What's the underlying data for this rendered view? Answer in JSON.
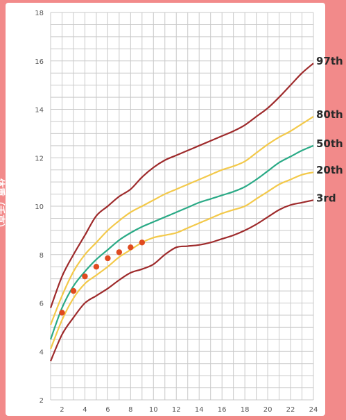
{
  "chart_data": {
    "type": "line",
    "title": "",
    "xlabel": "",
    "ylabel": "体重（千克）",
    "xlim": [
      1,
      24
    ],
    "ylim": [
      2,
      18
    ],
    "x_ticks": [
      2,
      4,
      6,
      8,
      10,
      12,
      14,
      16,
      18,
      20,
      22,
      24
    ],
    "y_ticks": [
      2,
      4,
      6,
      8,
      10,
      12,
      14,
      16,
      18
    ],
    "grid": true,
    "series": [
      {
        "name": "97th",
        "color": "#9e2a2b",
        "x": [
          1,
          2,
          3,
          4,
          5,
          6,
          7,
          8,
          9,
          10,
          11,
          12,
          13,
          14,
          15,
          16,
          17,
          18,
          19,
          20,
          21,
          22,
          23,
          24
        ],
        "values": [
          5.8,
          7.1,
          8.0,
          8.8,
          9.6,
          10.0,
          10.4,
          10.7,
          11.2,
          11.6,
          11.9,
          12.1,
          12.3,
          12.5,
          12.7,
          12.9,
          13.1,
          13.35,
          13.7,
          14.05,
          14.5,
          15.0,
          15.5,
          15.9
        ]
      },
      {
        "name": "80th",
        "color": "#f3c94a",
        "x": [
          1,
          2,
          3,
          4,
          5,
          6,
          7,
          8,
          9,
          10,
          11,
          12,
          13,
          14,
          15,
          16,
          17,
          18,
          19,
          20,
          21,
          22,
          23,
          24
        ],
        "values": [
          5.1,
          6.3,
          7.3,
          8.0,
          8.5,
          9.0,
          9.4,
          9.75,
          10.0,
          10.25,
          10.5,
          10.7,
          10.9,
          11.1,
          11.3,
          11.5,
          11.65,
          11.85,
          12.2,
          12.55,
          12.85,
          13.1,
          13.4,
          13.7
        ]
      },
      {
        "name": "50th",
        "color": "#2aaa86",
        "x": [
          1,
          2,
          3,
          4,
          5,
          6,
          7,
          8,
          9,
          10,
          11,
          12,
          13,
          14,
          15,
          16,
          17,
          18,
          19,
          20,
          21,
          22,
          23,
          24
        ],
        "values": [
          4.5,
          5.8,
          6.7,
          7.3,
          7.8,
          8.2,
          8.6,
          8.9,
          9.15,
          9.35,
          9.55,
          9.75,
          9.95,
          10.15,
          10.3,
          10.45,
          10.6,
          10.8,
          11.1,
          11.45,
          11.8,
          12.05,
          12.3,
          12.5
        ]
      },
      {
        "name": "20th",
        "color": "#f3c94a",
        "x": [
          1,
          2,
          3,
          4,
          5,
          6,
          7,
          8,
          9,
          10,
          11,
          12,
          13,
          14,
          15,
          16,
          17,
          18,
          19,
          20,
          21,
          22,
          23,
          24
        ],
        "values": [
          4.1,
          5.3,
          6.2,
          6.8,
          7.15,
          7.5,
          7.9,
          8.2,
          8.5,
          8.7,
          8.8,
          8.9,
          9.1,
          9.3,
          9.5,
          9.7,
          9.85,
          10.0,
          10.3,
          10.6,
          10.9,
          11.1,
          11.3,
          11.4
        ]
      },
      {
        "name": "3rd",
        "color": "#9e2a2b",
        "x": [
          1,
          2,
          3,
          4,
          5,
          6,
          7,
          8,
          9,
          10,
          11,
          12,
          13,
          14,
          15,
          16,
          17,
          18,
          19,
          20,
          21,
          22,
          23,
          24
        ],
        "values": [
          3.6,
          4.7,
          5.4,
          6.0,
          6.3,
          6.6,
          6.95,
          7.25,
          7.4,
          7.6,
          8.0,
          8.3,
          8.35,
          8.4,
          8.5,
          8.65,
          8.8,
          9.0,
          9.25,
          9.55,
          9.85,
          10.05,
          10.15,
          10.25
        ]
      }
    ],
    "points": {
      "color": "#e04a1f",
      "x": [
        2,
        3,
        4,
        5,
        6,
        7,
        8,
        9
      ],
      "values": [
        5.6,
        6.5,
        7.1,
        7.5,
        7.85,
        8.1,
        8.3,
        8.5
      ]
    }
  }
}
